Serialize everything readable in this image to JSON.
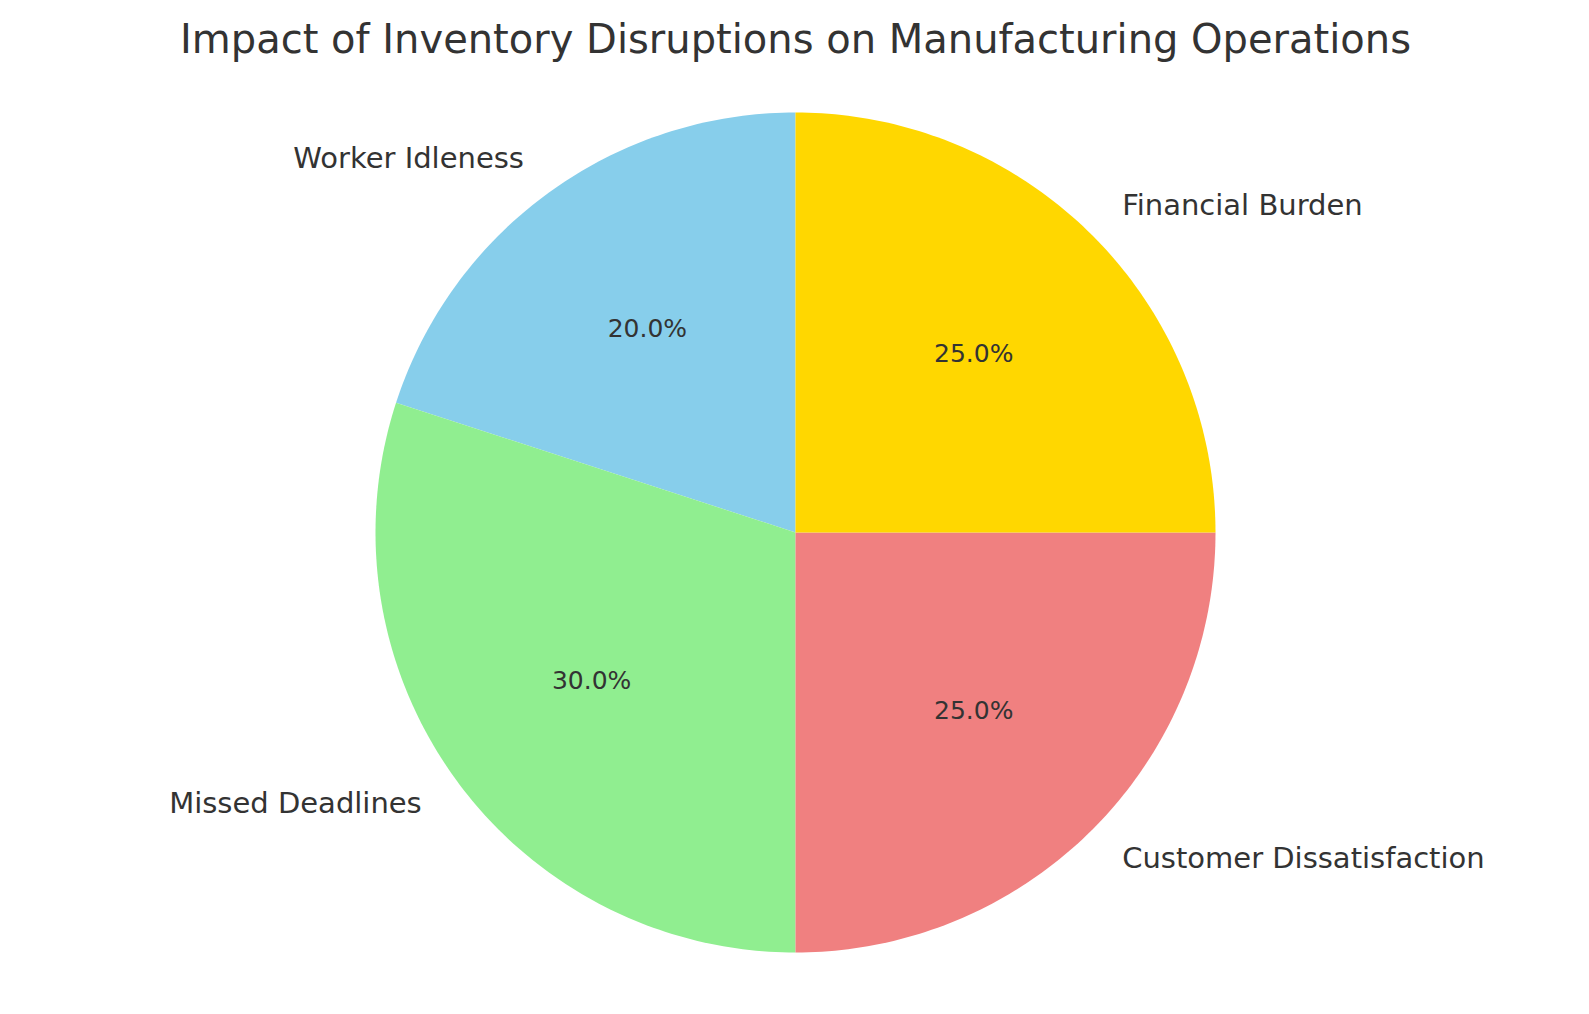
{
  "chart_data": {
    "type": "pie",
    "title": "Impact of Inventory Disruptions on Manufacturing Operations",
    "categories": [
      "Worker Idleness",
      "Missed Deadlines",
      "Customer Dissatisfaction",
      "Financial Burden"
    ],
    "values": [
      20,
      30,
      25,
      25
    ],
    "value_labels": [
      "20.0%",
      "30.0%",
      "25.0%",
      "25.0%"
    ],
    "colors": [
      "#87ceeb",
      "#90ee90",
      "#f08080",
      "#ffd700"
    ],
    "data_labels": true
  }
}
